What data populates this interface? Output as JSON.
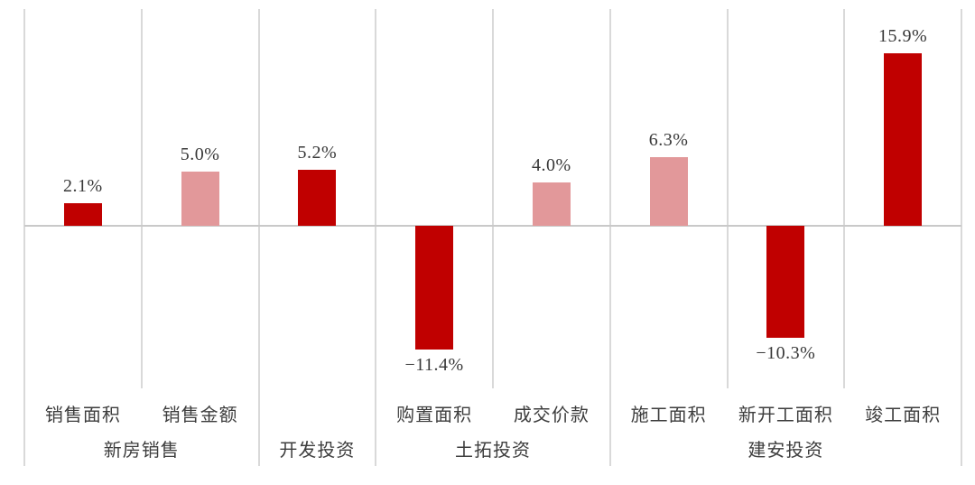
{
  "chart_data": {
    "type": "bar",
    "title": "",
    "xlabel": "",
    "ylabel": "",
    "legend": "none",
    "axis_ticks_visible": false,
    "ylim": [
      -15,
      20
    ],
    "categories": [
      "销售面积",
      "销售金额",
      "",
      "购置面积",
      "成交价款",
      "施工面积",
      "新开工面积",
      "竣工面积"
    ],
    "values": [
      2.1,
      5.0,
      5.2,
      -11.4,
      4.0,
      6.3,
      -10.3,
      15.9
    ],
    "value_labels": [
      "2.1%",
      "5.0%",
      "5.2%",
      "−11.4%",
      "4.0%",
      "6.3%",
      "−10.3%",
      "15.9%"
    ],
    "bar_colors": [
      "#c00000",
      "#e2989a",
      "#c00000",
      "#c00000",
      "#e2989a",
      "#e2989a",
      "#c00000",
      "#c00000"
    ],
    "groups": [
      {
        "label": "新房销售",
        "start": 0,
        "end": 1
      },
      {
        "label": "开发投资",
        "start": 2,
        "end": 2
      },
      {
        "label": "土拓投资",
        "start": 3,
        "end": 4
      },
      {
        "label": "建安投资",
        "start": 5,
        "end": 7
      }
    ],
    "grid": "vertical category separators; separators between groups extend through both label rows",
    "zero_axis_line": true
  },
  "colors": {
    "bar_dark_red": "#c00000",
    "bar_light_pink": "#e2989a",
    "separator_gray": "#d9d9d9",
    "zero_line_gray": "#c9c9c9",
    "label_text": "#383838",
    "background": "#ffffff"
  }
}
